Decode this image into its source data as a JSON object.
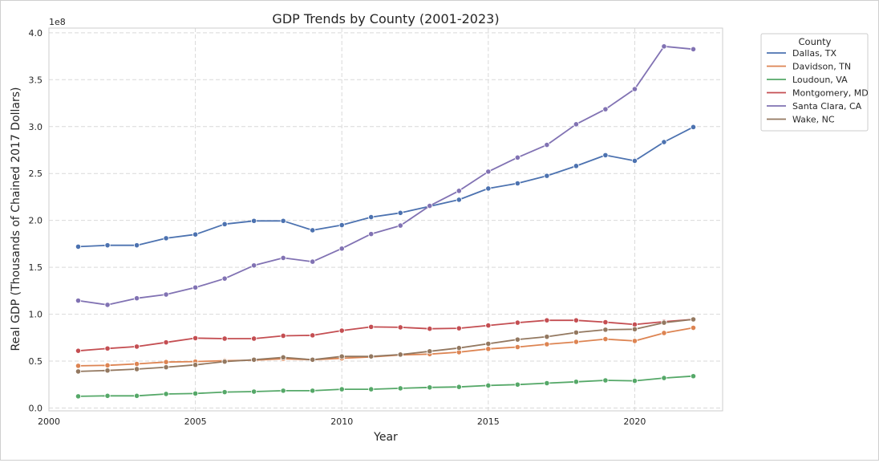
{
  "chart_data": {
    "type": "line",
    "title": "GDP Trends by County (2001-2023)",
    "xlabel": "Year",
    "ylabel": "Real GDP (Thousands of Chained 2017 Dollars)",
    "y_offset_label": "1e8",
    "xlim": [
      2000,
      2023
    ],
    "ylim": [
      -0.03,
      4.05
    ],
    "y_scale_multiplier": 100000000,
    "x_ticks": [
      2000,
      2005,
      2010,
      2015,
      2020
    ],
    "x_tick_labels": [
      "2000",
      "2005",
      "2010",
      "2015",
      "2020"
    ],
    "y_ticks": [
      0.0,
      0.5,
      1.0,
      1.5,
      2.0,
      2.5,
      3.0,
      3.5,
      4.0
    ],
    "y_tick_labels": [
      "0.0",
      "0.5",
      "1.0",
      "1.5",
      "2.0",
      "2.5",
      "3.0",
      "3.5",
      "4.0"
    ],
    "grid": true,
    "legend_title": "County",
    "legend_placement": "outside-top-right",
    "x": [
      2001,
      2002,
      2003,
      2004,
      2005,
      2006,
      2007,
      2008,
      2009,
      2010,
      2011,
      2012,
      2013,
      2014,
      2015,
      2016,
      2017,
      2018,
      2019,
      2020,
      2021,
      2022
    ],
    "series": [
      {
        "name": "Dallas, TX",
        "color": "#4c72b0",
        "values": [
          1.72,
          1.735,
          1.735,
          1.81,
          1.85,
          1.96,
          1.995,
          1.995,
          1.895,
          1.95,
          2.035,
          2.08,
          2.15,
          2.22,
          2.34,
          2.395,
          2.475,
          2.58,
          2.695,
          2.635,
          2.835,
          2.995
        ]
      },
      {
        "name": "Davidson, TN",
        "color": "#dd8452",
        "values": [
          0.45,
          0.455,
          0.47,
          0.49,
          0.495,
          0.505,
          0.51,
          0.525,
          0.515,
          0.53,
          0.545,
          0.565,
          0.575,
          0.595,
          0.63,
          0.65,
          0.68,
          0.705,
          0.735,
          0.715,
          0.8,
          0.855
        ]
      },
      {
        "name": "Loudoun, VA",
        "color": "#55a868",
        "values": [
          0.125,
          0.13,
          0.13,
          0.15,
          0.155,
          0.17,
          0.175,
          0.185,
          0.185,
          0.2,
          0.2,
          0.21,
          0.22,
          0.225,
          0.24,
          0.25,
          0.265,
          0.28,
          0.295,
          0.29,
          0.32,
          0.34
        ]
      },
      {
        "name": "Montgomery, MD",
        "color": "#c44e52",
        "values": [
          0.61,
          0.635,
          0.655,
          0.7,
          0.745,
          0.74,
          0.74,
          0.77,
          0.775,
          0.825,
          0.865,
          0.86,
          0.845,
          0.85,
          0.88,
          0.91,
          0.935,
          0.935,
          0.915,
          0.89,
          0.92,
          0.945
        ]
      },
      {
        "name": "Santa Clara, CA",
        "color": "#8172b3",
        "values": [
          1.145,
          1.1,
          1.17,
          1.21,
          1.285,
          1.38,
          1.52,
          1.6,
          1.56,
          1.7,
          1.855,
          1.945,
          2.155,
          2.315,
          2.52,
          2.67,
          2.805,
          3.025,
          3.185,
          3.4,
          3.855,
          3.825
        ]
      },
      {
        "name": "Wake, NC",
        "color": "#937860",
        "values": [
          0.39,
          0.4,
          0.415,
          0.435,
          0.46,
          0.495,
          0.515,
          0.54,
          0.515,
          0.55,
          0.55,
          0.57,
          0.605,
          0.64,
          0.685,
          0.73,
          0.76,
          0.805,
          0.835,
          0.84,
          0.91,
          0.945
        ]
      }
    ]
  }
}
